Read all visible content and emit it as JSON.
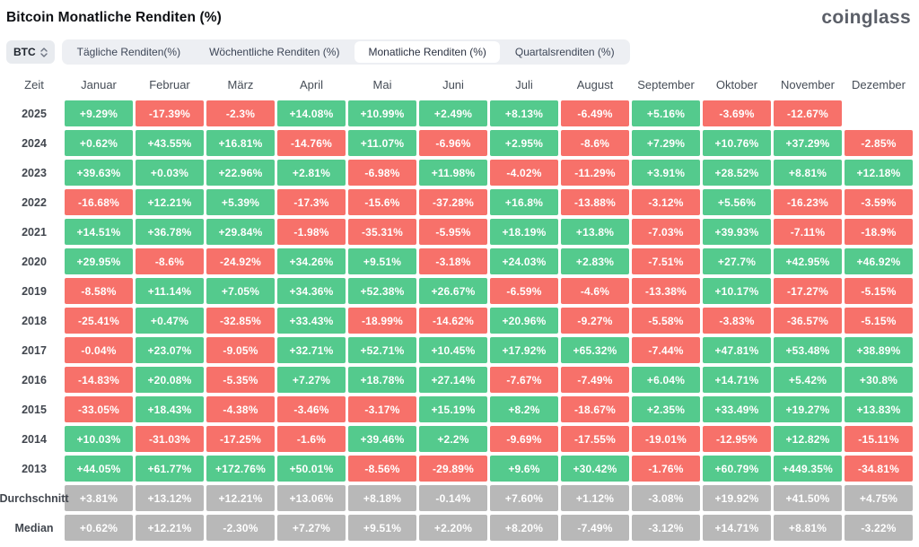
{
  "header": {
    "title": "Bitcoin Monatliche Renditen (%)",
    "logo": "coinglass"
  },
  "controls": {
    "symbol_select": {
      "value": "BTC"
    },
    "tabs": [
      {
        "label": "Tägliche Renditen(%)",
        "active": false
      },
      {
        "label": "Wöchentliche Renditen (%)",
        "active": false
      },
      {
        "label": "Monatliche Renditen (%)",
        "active": true
      },
      {
        "label": "Quartalsrenditen (%)",
        "active": false
      }
    ]
  },
  "colors": {
    "positive": "#54ca8d",
    "negative": "#f7716a",
    "neutral": "#b8b8b8"
  },
  "chart_data": {
    "type": "table",
    "title": "Bitcoin Monatliche Renditen (%)",
    "columns": [
      "Zeit",
      "Januar",
      "Februar",
      "März",
      "April",
      "Mai",
      "Juni",
      "Juli",
      "August",
      "September",
      "Oktober",
      "November",
      "Dezember"
    ],
    "rows": [
      {
        "label": "2025",
        "kind": "year",
        "values": [
          "+9.29%",
          "-17.39%",
          "-2.3%",
          "+14.08%",
          "+10.99%",
          "+2.49%",
          "+8.13%",
          "-6.49%",
          "+5.16%",
          "-3.69%",
          "-12.67%",
          ""
        ]
      },
      {
        "label": "2024",
        "kind": "year",
        "values": [
          "+0.62%",
          "+43.55%",
          "+16.81%",
          "-14.76%",
          "+11.07%",
          "-6.96%",
          "+2.95%",
          "-8.6%",
          "+7.29%",
          "+10.76%",
          "+37.29%",
          "-2.85%"
        ]
      },
      {
        "label": "2023",
        "kind": "year",
        "values": [
          "+39.63%",
          "+0.03%",
          "+22.96%",
          "+2.81%",
          "-6.98%",
          "+11.98%",
          "-4.02%",
          "-11.29%",
          "+3.91%",
          "+28.52%",
          "+8.81%",
          "+12.18%"
        ]
      },
      {
        "label": "2022",
        "kind": "year",
        "values": [
          "-16.68%",
          "+12.21%",
          "+5.39%",
          "-17.3%",
          "-15.6%",
          "-37.28%",
          "+16.8%",
          "-13.88%",
          "-3.12%",
          "+5.56%",
          "-16.23%",
          "-3.59%"
        ]
      },
      {
        "label": "2021",
        "kind": "year",
        "values": [
          "+14.51%",
          "+36.78%",
          "+29.84%",
          "-1.98%",
          "-35.31%",
          "-5.95%",
          "+18.19%",
          "+13.8%",
          "-7.03%",
          "+39.93%",
          "-7.11%",
          "-18.9%"
        ]
      },
      {
        "label": "2020",
        "kind": "year",
        "values": [
          "+29.95%",
          "-8.6%",
          "-24.92%",
          "+34.26%",
          "+9.51%",
          "-3.18%",
          "+24.03%",
          "+2.83%",
          "-7.51%",
          "+27.7%",
          "+42.95%",
          "+46.92%"
        ]
      },
      {
        "label": "2019",
        "kind": "year",
        "values": [
          "-8.58%",
          "+11.14%",
          "+7.05%",
          "+34.36%",
          "+52.38%",
          "+26.67%",
          "-6.59%",
          "-4.6%",
          "-13.38%",
          "+10.17%",
          "-17.27%",
          "-5.15%"
        ]
      },
      {
        "label": "2018",
        "kind": "year",
        "values": [
          "-25.41%",
          "+0.47%",
          "-32.85%",
          "+33.43%",
          "-18.99%",
          "-14.62%",
          "+20.96%",
          "-9.27%",
          "-5.58%",
          "-3.83%",
          "-36.57%",
          "-5.15%"
        ]
      },
      {
        "label": "2017",
        "kind": "year",
        "values": [
          "-0.04%",
          "+23.07%",
          "-9.05%",
          "+32.71%",
          "+52.71%",
          "+10.45%",
          "+17.92%",
          "+65.32%",
          "-7.44%",
          "+47.81%",
          "+53.48%",
          "+38.89%"
        ]
      },
      {
        "label": "2016",
        "kind": "year",
        "values": [
          "-14.83%",
          "+20.08%",
          "-5.35%",
          "+7.27%",
          "+18.78%",
          "+27.14%",
          "-7.67%",
          "-7.49%",
          "+6.04%",
          "+14.71%",
          "+5.42%",
          "+30.8%"
        ]
      },
      {
        "label": "2015",
        "kind": "year",
        "values": [
          "-33.05%",
          "+18.43%",
          "-4.38%",
          "-3.46%",
          "-3.17%",
          "+15.19%",
          "+8.2%",
          "-18.67%",
          "+2.35%",
          "+33.49%",
          "+19.27%",
          "+13.83%"
        ]
      },
      {
        "label": "2014",
        "kind": "year",
        "values": [
          "+10.03%",
          "-31.03%",
          "-17.25%",
          "-1.6%",
          "+39.46%",
          "+2.2%",
          "-9.69%",
          "-17.55%",
          "-19.01%",
          "-12.95%",
          "+12.82%",
          "-15.11%"
        ]
      },
      {
        "label": "2013",
        "kind": "year",
        "values": [
          "+44.05%",
          "+61.77%",
          "+172.76%",
          "+50.01%",
          "-8.56%",
          "-29.89%",
          "+9.6%",
          "+30.42%",
          "-1.76%",
          "+60.79%",
          "+449.35%",
          "-34.81%"
        ]
      },
      {
        "label": "Durchschnitt",
        "kind": "summary",
        "values": [
          "+3.81%",
          "+13.12%",
          "+12.21%",
          "+13.06%",
          "+8.18%",
          "-0.14%",
          "+7.60%",
          "+1.12%",
          "-3.08%",
          "+19.92%",
          "+41.50%",
          "+4.75%"
        ]
      },
      {
        "label": "Median",
        "kind": "summary",
        "values": [
          "+0.62%",
          "+12.21%",
          "-2.30%",
          "+7.27%",
          "+9.51%",
          "+2.20%",
          "+8.20%",
          "-7.49%",
          "-3.12%",
          "+14.71%",
          "+8.81%",
          "-3.22%"
        ]
      }
    ]
  }
}
